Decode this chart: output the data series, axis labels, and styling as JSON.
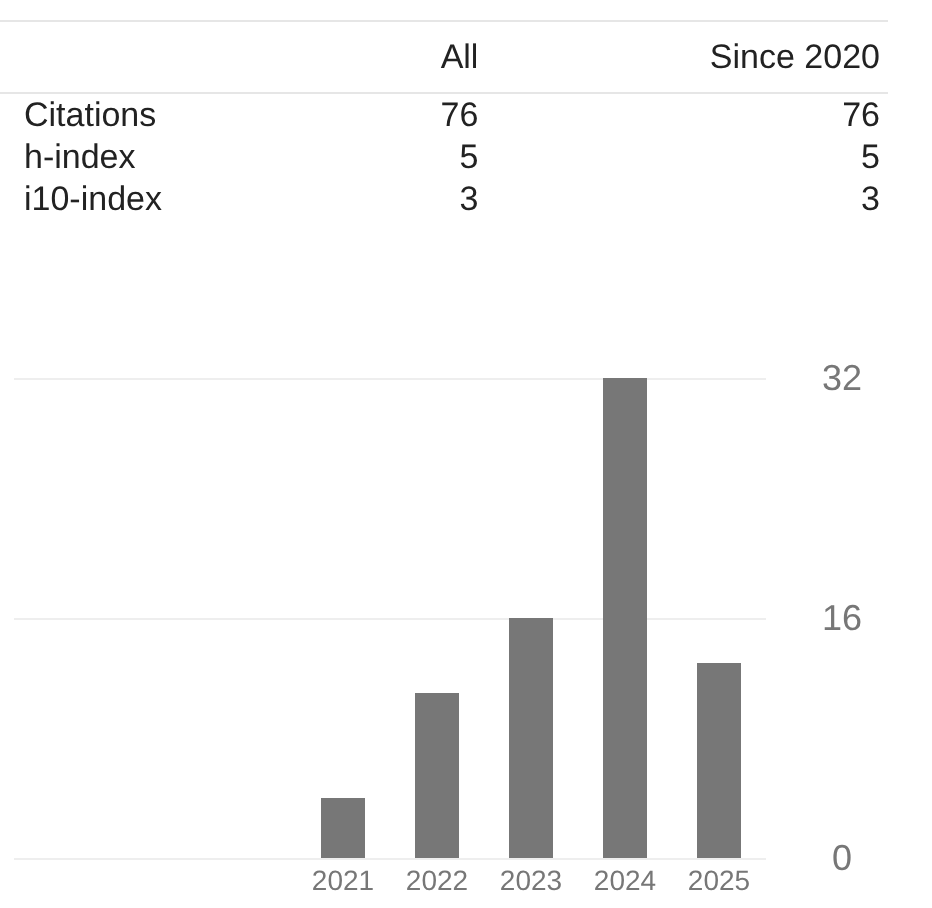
{
  "chart_data": [
    {
      "type": "other",
      "categories": [
        "Citations",
        "h-index",
        "i10-index"
      ],
      "data_labels": true,
      "series": [
        {
          "name": "All",
          "values": [
            76,
            5,
            3
          ]
        },
        {
          "name": "Since 2020",
          "values": [
            76,
            5,
            3
          ]
        }
      ]
    },
    {
      "type": "bar",
      "categories": [
        null,
        null,
        null,
        "2021",
        "2022",
        "2023",
        "2024",
        "2025"
      ],
      "values": [
        null,
        null,
        null,
        4,
        11,
        16,
        32,
        13
      ],
      "color": "#777777",
      "ylim": [
        0,
        32
      ],
      "yticks": [
        0,
        16,
        32
      ],
      "grid": "y"
    }
  ]
}
